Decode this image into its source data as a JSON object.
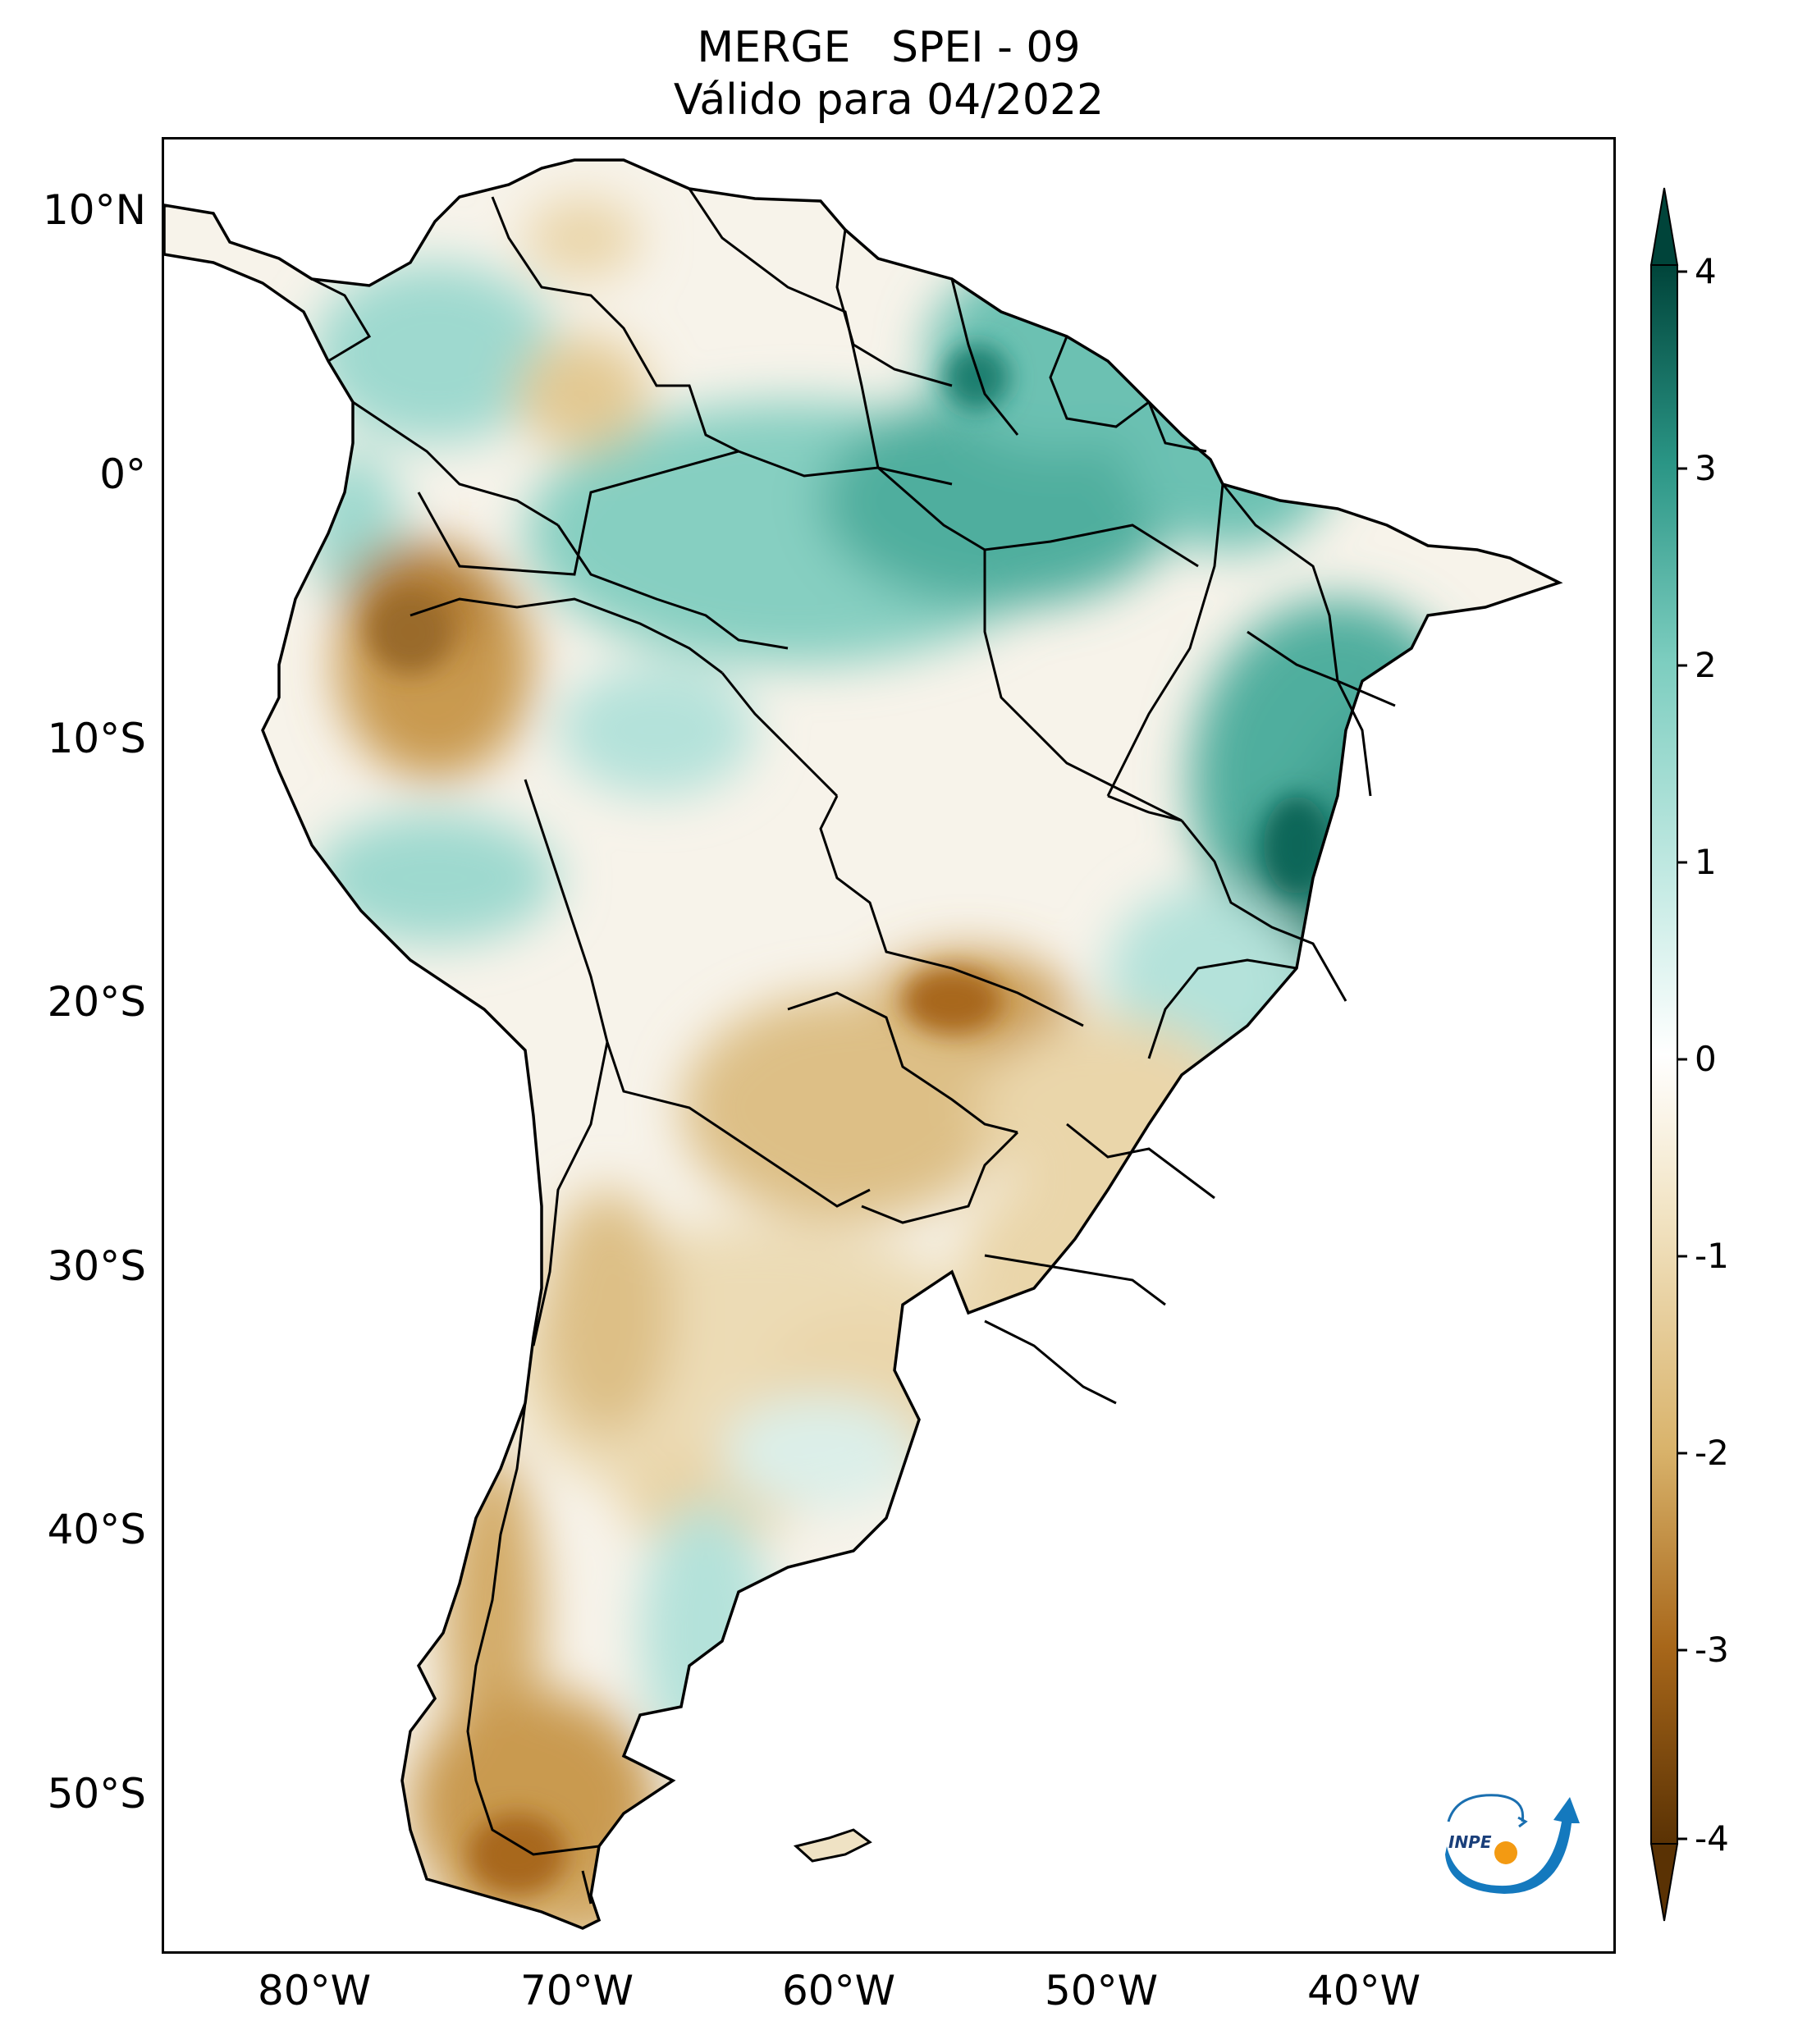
{
  "title": {
    "line1": "MERGE   SPEI - 09",
    "line2": "Válido para 04/2022"
  },
  "axes": {
    "lat_labels": [
      "10°N",
      "0°",
      "10°S",
      "20°S",
      "30°S",
      "40°S",
      "50°S"
    ],
    "lon_labels": [
      "80°W",
      "70°W",
      "60°W",
      "50°W",
      "40°W"
    ]
  },
  "colorbar": {
    "ticks": [
      "4",
      "3",
      "2",
      "1",
      "0",
      "-1",
      "-2",
      "-3",
      "-4"
    ],
    "colors": {
      "dry_extreme": "#5a3204",
      "dry_strong": "#a8671a",
      "dry_moderate": "#d9b36b",
      "dry_mild": "#f2e4c4",
      "neutral": "#ffffff",
      "wet_mild": "#c9ece6",
      "wet_moderate": "#7ccdbf",
      "wet_strong": "#2a9585",
      "wet_extreme": "#00443a"
    }
  },
  "logo": {
    "text": "INPE"
  }
}
